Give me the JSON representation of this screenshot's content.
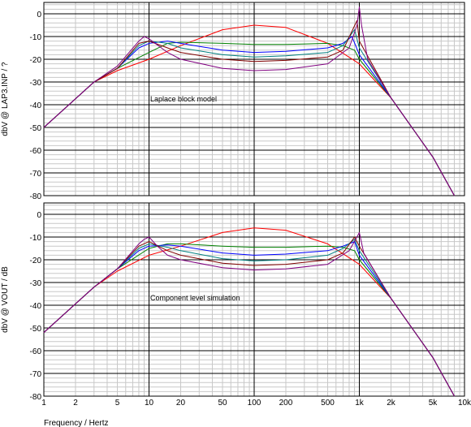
{
  "chart_data": [
    {
      "type": "line",
      "title": "",
      "annotation": "Laplace block model",
      "xlabel": "",
      "ylabel": "dbV @ LAP3.INP / ?",
      "xscale": "log",
      "xlim": [
        1,
        10000
      ],
      "ylim": [
        -80,
        5
      ],
      "x_ticks": [
        1,
        2,
        5,
        10,
        20,
        50,
        100,
        200,
        500,
        1000,
        2000,
        5000,
        10000
      ],
      "x_tick_labels": [],
      "y_ticks": [
        0,
        -10,
        -20,
        -30,
        -40,
        -50,
        -60,
        -70,
        -80
      ],
      "y_tick_labels": [
        "0",
        "-10",
        "-20",
        "-30",
        "-40",
        "-50",
        "-60",
        "-70",
        "-80"
      ],
      "grid": true,
      "series": [
        {
          "color": "#ff0000",
          "x": [
            1,
            3,
            5,
            10,
            20,
            50,
            100,
            200,
            500,
            1000,
            2000,
            5000,
            8000
          ],
          "y": [
            -50,
            -30,
            -25,
            -20,
            -14,
            -7,
            -5,
            -6,
            -13,
            -22,
            -37,
            -63,
            -80
          ]
        },
        {
          "color": "#008000",
          "x": [
            1,
            3,
            5,
            10,
            15,
            20,
            50,
            100,
            200,
            500,
            700,
            900,
            1000,
            2000,
            5000,
            8000
          ],
          "y": [
            -50,
            -30,
            -24,
            -17,
            -13,
            -12.5,
            -13,
            -13.5,
            -13.5,
            -13,
            -14,
            -16,
            -20,
            -37,
            -63,
            -80
          ]
        },
        {
          "color": "#0000ff",
          "x": [
            1,
            3,
            5,
            8,
            10,
            15,
            20,
            50,
            100,
            200,
            500,
            700,
            850,
            1000,
            2000,
            5000,
            8000
          ],
          "y": [
            -50,
            -30,
            -24,
            -15,
            -13,
            -12,
            -13,
            -16,
            -17,
            -16.5,
            -15,
            -13,
            -10,
            -18,
            -37,
            -63,
            -80
          ]
        },
        {
          "color": "#008080",
          "x": [
            1,
            3,
            5,
            8,
            10,
            15,
            20,
            50,
            100,
            200,
            500,
            700,
            900,
            1000,
            2000,
            5000,
            8000
          ],
          "y": [
            -50,
            -30,
            -24,
            -14,
            -12,
            -13,
            -15,
            -18,
            -19,
            -18.5,
            -17,
            -14,
            -7,
            -15,
            -37,
            -63,
            -80
          ]
        },
        {
          "color": "#800000",
          "x": [
            1,
            3,
            5,
            8,
            10,
            15,
            20,
            50,
            100,
            200,
            500,
            700,
            950,
            1000,
            2000,
            5000,
            8000
          ],
          "y": [
            -50,
            -30,
            -24,
            -13,
            -12,
            -15,
            -17,
            -20,
            -21,
            -20.5,
            -19,
            -16,
            -3,
            -12,
            -37,
            -63,
            -80
          ]
        },
        {
          "color": "#800080",
          "x": [
            1,
            3,
            5,
            8,
            9,
            10,
            15,
            20,
            50,
            100,
            200,
            500,
            800,
            950,
            1000,
            1050,
            1200,
            2000,
            5000,
            8000
          ],
          "y": [
            -50,
            -30,
            -23,
            -12,
            -10,
            -11,
            -17,
            -20,
            -24,
            -25,
            -24.5,
            -22,
            -15,
            -5,
            3,
            -5,
            -20,
            -37,
            -63,
            -80
          ]
        }
      ]
    },
    {
      "type": "line",
      "title": "",
      "annotation": "Component level simulation",
      "xlabel": "Frequency / Hertz",
      "ylabel": "dbV @ VOUT / dB",
      "xscale": "log",
      "xlim": [
        1,
        10000
      ],
      "ylim": [
        -80,
        5
      ],
      "x_ticks": [
        1,
        2,
        5,
        10,
        20,
        50,
        100,
        200,
        500,
        1000,
        2000,
        5000,
        10000
      ],
      "x_tick_labels": [
        "1",
        "2",
        "5",
        "10",
        "20",
        "50",
        "100",
        "200",
        "500",
        "1k",
        "2k",
        "5k",
        "10k"
      ],
      "y_ticks": [
        0,
        -10,
        -20,
        -30,
        -40,
        -50,
        -60,
        -70,
        -80
      ],
      "y_tick_labels": [
        "0",
        "-10",
        "-20",
        "-30",
        "-40",
        "-50",
        "-60",
        "-70",
        "-80"
      ],
      "grid": true,
      "series": [
        {
          "color": "#ff0000",
          "x": [
            1,
            3,
            5,
            10,
            20,
            50,
            100,
            200,
            500,
            1000,
            2000,
            5000,
            8000
          ],
          "y": [
            -52,
            -32,
            -25,
            -18,
            -14,
            -8,
            -6,
            -7,
            -13,
            -22,
            -37,
            -63,
            -80
          ]
        },
        {
          "color": "#008000",
          "x": [
            1,
            3,
            5,
            10,
            15,
            20,
            50,
            100,
            200,
            500,
            700,
            900,
            1000,
            2000,
            5000,
            8000
          ],
          "y": [
            -52,
            -32,
            -24,
            -15,
            -13,
            -13,
            -14,
            -14.5,
            -14.5,
            -14,
            -14.5,
            -16,
            -20,
            -37,
            -63,
            -80
          ]
        },
        {
          "color": "#0000ff",
          "x": [
            1,
            3,
            5,
            8,
            10,
            15,
            20,
            50,
            100,
            200,
            500,
            700,
            900,
            1000,
            2000,
            5000,
            8000
          ],
          "y": [
            -52,
            -32,
            -24,
            -16,
            -14,
            -13.5,
            -14,
            -17,
            -18,
            -17.5,
            -16,
            -14,
            -12,
            -18,
            -37,
            -63,
            -80
          ]
        },
        {
          "color": "#008080",
          "x": [
            1,
            3,
            5,
            8,
            10,
            15,
            20,
            50,
            100,
            200,
            500,
            700,
            900,
            1000,
            2000,
            5000,
            8000
          ],
          "y": [
            -52,
            -32,
            -24,
            -15,
            -13,
            -14.5,
            -16,
            -19.5,
            -20.5,
            -20,
            -18,
            -15,
            -11,
            -16,
            -37,
            -63,
            -80
          ]
        },
        {
          "color": "#800000",
          "x": [
            1,
            3,
            5,
            8,
            10,
            15,
            20,
            50,
            100,
            200,
            500,
            700,
            900,
            1000,
            2000,
            5000,
            8000
          ],
          "y": [
            -52,
            -32,
            -24,
            -14,
            -12,
            -16,
            -18,
            -21.5,
            -22.5,
            -22,
            -20,
            -17,
            -10,
            -14,
            -37,
            -63,
            -80
          ]
        },
        {
          "color": "#800080",
          "x": [
            1,
            3,
            5,
            8,
            9,
            10,
            12,
            15,
            20,
            50,
            100,
            200,
            500,
            800,
            950,
            1000,
            1100,
            2000,
            5000,
            8000
          ],
          "y": [
            -52,
            -32,
            -24,
            -13,
            -11,
            -10,
            -14,
            -18,
            -20,
            -23.5,
            -24.5,
            -24,
            -22,
            -16,
            -10,
            -8,
            -17,
            -37,
            -63,
            -80
          ]
        }
      ]
    }
  ]
}
